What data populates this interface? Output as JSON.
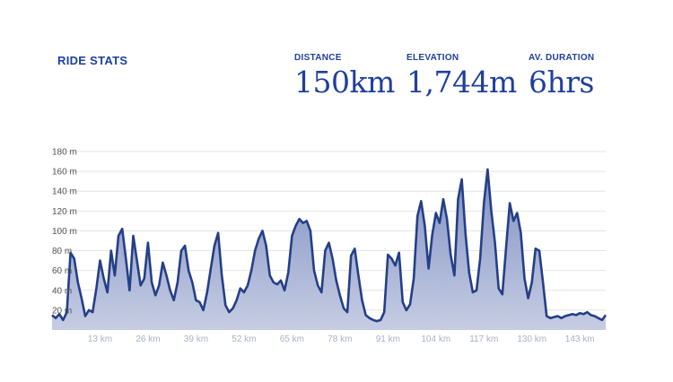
{
  "header": {
    "title": "RIDE STATS",
    "stats": [
      {
        "label": "DISTANCE",
        "value": "150km"
      },
      {
        "label": "ELEVATION",
        "value": "1,744m"
      },
      {
        "label": "AV. DURATION",
        "value": "6hrs"
      }
    ]
  },
  "colors": {
    "accent": "#1f3f9e",
    "line": "#243f88",
    "fill_top": "#7f8fc2",
    "fill_bottom": "#c6cde3",
    "grid": "#e4e4e4",
    "y_tick_text": "#555555",
    "x_tick_text": "#aab0c4"
  },
  "chart_data": {
    "type": "area",
    "xlim": [
      0,
      150
    ],
    "ylim": [
      0,
      180
    ],
    "grid": true,
    "y_ticks": [
      20,
      40,
      60,
      80,
      100,
      120,
      140,
      160,
      180
    ],
    "y_tick_labels": [
      "20 m",
      "40 m",
      "60 m",
      "80 m",
      "100 m",
      "120 m",
      "140 m",
      "160 m",
      "180 m"
    ],
    "x_ticks": [
      13,
      26,
      39,
      52,
      65,
      78,
      91,
      104,
      117,
      130,
      143
    ],
    "x_tick_labels": [
      "13 km",
      "26 km",
      "39 km",
      "52 km",
      "65 km",
      "78 km",
      "91 km",
      "104 km",
      "117 km",
      "130 km",
      "143 km"
    ],
    "series": [
      {
        "x": [
          0,
          1,
          2,
          3,
          4,
          5,
          6,
          7,
          8,
          9,
          10,
          11,
          12,
          13,
          14,
          15,
          16,
          17,
          18,
          19,
          20,
          21,
          22,
          23,
          24,
          25,
          26,
          27,
          28,
          29,
          30,
          31,
          32,
          33,
          34,
          35,
          36,
          37,
          38,
          39,
          40,
          41,
          42,
          43,
          44,
          45,
          46,
          47,
          48,
          49,
          50,
          51,
          52,
          53,
          54,
          55,
          56,
          57,
          58,
          59,
          60,
          61,
          62,
          63,
          64,
          65,
          66,
          67,
          68,
          69,
          70,
          71,
          72,
          73,
          74,
          75,
          76,
          77,
          78,
          79,
          80,
          81,
          82,
          83,
          84,
          85,
          86,
          87,
          88,
          89,
          90,
          91,
          92,
          93,
          94,
          95,
          96,
          97,
          98,
          99,
          100,
          101,
          102,
          103,
          104,
          105,
          106,
          107,
          108,
          109,
          110,
          111,
          112,
          113,
          114,
          115,
          116,
          117,
          118,
          119,
          120,
          121,
          122,
          123,
          124,
          125,
          126,
          127,
          128,
          129,
          130,
          131,
          132,
          133,
          134,
          135,
          136,
          137,
          138,
          139,
          140,
          141,
          142,
          143,
          144,
          145,
          146,
          147,
          148,
          149,
          150
        ],
        "y": [
          15,
          12,
          16,
          10,
          18,
          78,
          72,
          48,
          32,
          14,
          20,
          18,
          42,
          70,
          52,
          38,
          80,
          55,
          95,
          102,
          72,
          40,
          95,
          70,
          45,
          52,
          88,
          48,
          35,
          45,
          68,
          55,
          40,
          30,
          48,
          80,
          85,
          60,
          48,
          30,
          28,
          20,
          38,
          62,
          85,
          98,
          55,
          25,
          18,
          22,
          30,
          42,
          38,
          45,
          60,
          80,
          92,
          100,
          85,
          55,
          48,
          46,
          50,
          40,
          58,
          95,
          105,
          112,
          108,
          110,
          100,
          60,
          45,
          38,
          80,
          88,
          72,
          50,
          35,
          22,
          18,
          75,
          82,
          55,
          30,
          15,
          12,
          10,
          9,
          10,
          18,
          76,
          72,
          65,
          78,
          28,
          20,
          26,
          52,
          115,
          130,
          105,
          62,
          96,
          118,
          108,
          132,
          112,
          76,
          55,
          132,
          152,
          98,
          58,
          38,
          40,
          72,
          128,
          162,
          120,
          88,
          42,
          36,
          82,
          128,
          110,
          118,
          98,
          52,
          32,
          48,
          82,
          80,
          48,
          14,
          12,
          13,
          14,
          12,
          14,
          15,
          16,
          15,
          17,
          16,
          18,
          15,
          14,
          12,
          10,
          15
        ]
      }
    ]
  }
}
